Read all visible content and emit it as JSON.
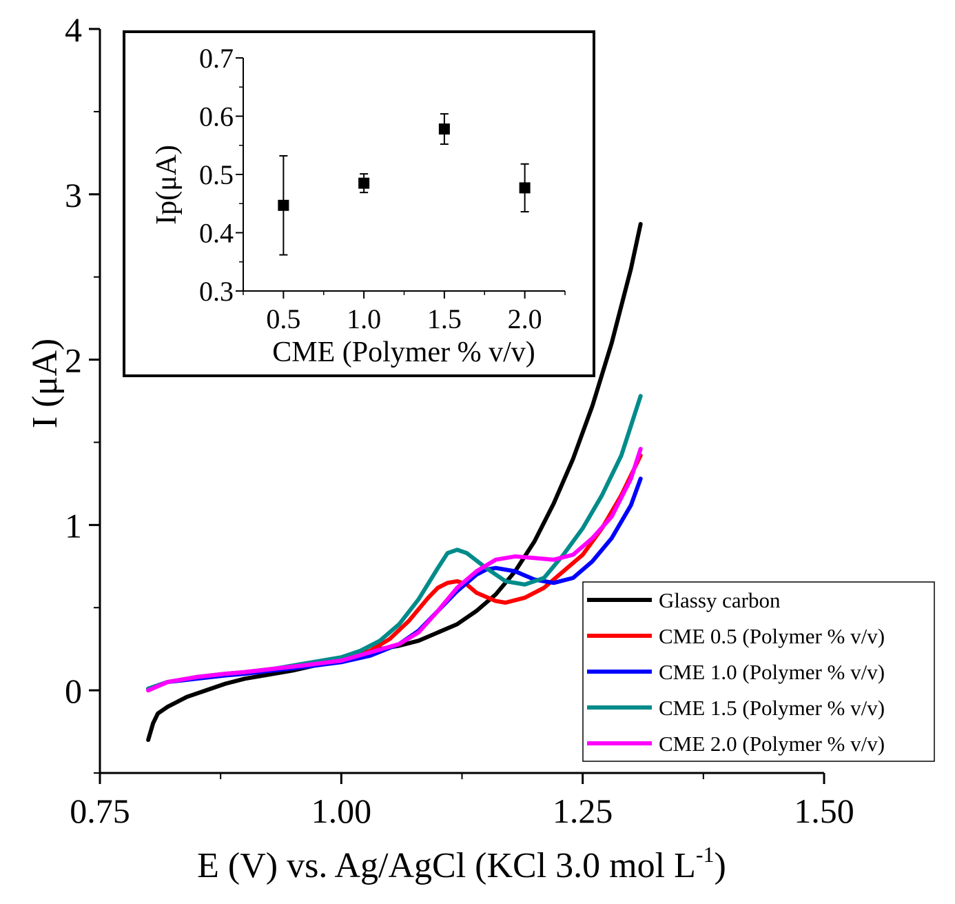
{
  "chart_data": [
    {
      "type": "line",
      "xlabel": "E (V) vs. Ag/AgCl (KCl 3.0 mol L",
      "xlabel_superscript": "-1",
      "xlabel_suffix": ")",
      "ylabel": "I (μA)",
      "xlim": [
        0.75,
        1.5
      ],
      "ylim": [
        -0.5,
        4
      ],
      "x_ticks": [
        "0.75",
        "1.00",
        "1.25",
        "1.50"
      ],
      "x_tick_values": [
        0.75,
        1.0,
        1.25,
        1.5
      ],
      "y_ticks": [
        "0",
        "1",
        "2",
        "3",
        "4"
      ],
      "y_tick_values": [
        0,
        1,
        2,
        3,
        4
      ],
      "legend_position": "bottom-right",
      "series": [
        {
          "name": "Glassy carbon",
          "color": "#000000",
          "points": [
            [
              0.8,
              -0.3
            ],
            [
              0.805,
              -0.2
            ],
            [
              0.81,
              -0.14
            ],
            [
              0.82,
              -0.1
            ],
            [
              0.84,
              -0.04
            ],
            [
              0.86,
              0.0
            ],
            [
              0.88,
              0.04
            ],
            [
              0.9,
              0.07
            ],
            [
              0.92,
              0.09
            ],
            [
              0.95,
              0.12
            ],
            [
              0.98,
              0.16
            ],
            [
              1.0,
              0.19
            ],
            [
              1.02,
              0.22
            ],
            [
              1.04,
              0.25
            ],
            [
              1.06,
              0.27
            ],
            [
              1.08,
              0.3
            ],
            [
              1.1,
              0.35
            ],
            [
              1.12,
              0.4
            ],
            [
              1.14,
              0.48
            ],
            [
              1.16,
              0.58
            ],
            [
              1.18,
              0.72
            ],
            [
              1.2,
              0.9
            ],
            [
              1.22,
              1.13
            ],
            [
              1.24,
              1.4
            ],
            [
              1.26,
              1.72
            ],
            [
              1.28,
              2.1
            ],
            [
              1.3,
              2.55
            ],
            [
              1.31,
              2.82
            ]
          ]
        },
        {
          "name": "CME 0.5 (Polymer % v/v)",
          "color": "#ff0000",
          "points": [
            [
              0.8,
              0.0
            ],
            [
              0.82,
              0.05
            ],
            [
              0.85,
              0.08
            ],
            [
              0.88,
              0.1
            ],
            [
              0.9,
              0.11
            ],
            [
              0.93,
              0.13
            ],
            [
              0.96,
              0.15
            ],
            [
              1.0,
              0.19
            ],
            [
              1.03,
              0.24
            ],
            [
              1.05,
              0.31
            ],
            [
              1.07,
              0.42
            ],
            [
              1.09,
              0.56
            ],
            [
              1.1,
              0.62
            ],
            [
              1.11,
              0.65
            ],
            [
              1.12,
              0.66
            ],
            [
              1.13,
              0.64
            ],
            [
              1.14,
              0.59
            ],
            [
              1.16,
              0.54
            ],
            [
              1.17,
              0.53
            ],
            [
              1.19,
              0.56
            ],
            [
              1.21,
              0.62
            ],
            [
              1.23,
              0.72
            ],
            [
              1.25,
              0.82
            ],
            [
              1.27,
              0.98
            ],
            [
              1.29,
              1.18
            ],
            [
              1.31,
              1.42
            ]
          ]
        },
        {
          "name": "CME 1.0 (Polymer % v/v)",
          "color": "#0000ff",
          "points": [
            [
              0.8,
              0.01
            ],
            [
              0.82,
              0.05
            ],
            [
              0.85,
              0.07
            ],
            [
              0.88,
              0.09
            ],
            [
              0.9,
              0.1
            ],
            [
              0.93,
              0.12
            ],
            [
              0.96,
              0.14
            ],
            [
              1.0,
              0.17
            ],
            [
              1.03,
              0.21
            ],
            [
              1.06,
              0.28
            ],
            [
              1.08,
              0.36
            ],
            [
              1.1,
              0.48
            ],
            [
              1.12,
              0.6
            ],
            [
              1.14,
              0.7
            ],
            [
              1.15,
              0.73
            ],
            [
              1.16,
              0.74
            ],
            [
              1.18,
              0.72
            ],
            [
              1.2,
              0.67
            ],
            [
              1.22,
              0.65
            ],
            [
              1.24,
              0.68
            ],
            [
              1.26,
              0.78
            ],
            [
              1.28,
              0.92
            ],
            [
              1.3,
              1.12
            ],
            [
              1.31,
              1.28
            ]
          ]
        },
        {
          "name": "CME 1.5 (Polymer % v/v)",
          "color": "#008b8b",
          "points": [
            [
              0.8,
              0.01
            ],
            [
              0.82,
              0.05
            ],
            [
              0.85,
              0.08
            ],
            [
              0.88,
              0.1
            ],
            [
              0.9,
              0.11
            ],
            [
              0.93,
              0.13
            ],
            [
              0.96,
              0.16
            ],
            [
              1.0,
              0.2
            ],
            [
              1.02,
              0.24
            ],
            [
              1.04,
              0.3
            ],
            [
              1.06,
              0.4
            ],
            [
              1.08,
              0.55
            ],
            [
              1.1,
              0.74
            ],
            [
              1.11,
              0.83
            ],
            [
              1.12,
              0.85
            ],
            [
              1.13,
              0.83
            ],
            [
              1.15,
              0.74
            ],
            [
              1.17,
              0.66
            ],
            [
              1.19,
              0.64
            ],
            [
              1.21,
              0.68
            ],
            [
              1.23,
              0.82
            ],
            [
              1.25,
              0.98
            ],
            [
              1.27,
              1.18
            ],
            [
              1.29,
              1.42
            ],
            [
              1.31,
              1.78
            ]
          ]
        },
        {
          "name": "CME 2.0 (Polymer % v/v)",
          "color": "#ff00ff",
          "points": [
            [
              0.8,
              0.0
            ],
            [
              0.82,
              0.05
            ],
            [
              0.85,
              0.08
            ],
            [
              0.88,
              0.1
            ],
            [
              0.9,
              0.11
            ],
            [
              0.93,
              0.13
            ],
            [
              0.96,
              0.15
            ],
            [
              1.0,
              0.18
            ],
            [
              1.03,
              0.23
            ],
            [
              1.06,
              0.28
            ],
            [
              1.08,
              0.35
            ],
            [
              1.1,
              0.48
            ],
            [
              1.12,
              0.62
            ],
            [
              1.14,
              0.72
            ],
            [
              1.16,
              0.79
            ],
            [
              1.18,
              0.81
            ],
            [
              1.2,
              0.8
            ],
            [
              1.22,
              0.79
            ],
            [
              1.24,
              0.82
            ],
            [
              1.26,
              0.92
            ],
            [
              1.28,
              1.05
            ],
            [
              1.3,
              1.28
            ],
            [
              1.31,
              1.46
            ]
          ]
        }
      ]
    },
    {
      "type": "scatter",
      "xlabel": "CME (Polymer % v/v)",
      "ylabel": "Ip(μA)",
      "xlim": [
        0.25,
        2.25
      ],
      "ylim": [
        0.3,
        0.7
      ],
      "x_ticks": [
        "0.5",
        "1.0",
        "1.5",
        "2.0"
      ],
      "x_tick_values": [
        0.5,
        1.0,
        1.5,
        2.0
      ],
      "y_ticks": [
        "0.3",
        "0.4",
        "0.5",
        "0.6",
        "0.7"
      ],
      "y_tick_values": [
        0.3,
        0.4,
        0.5,
        0.6,
        0.7
      ],
      "legend_position": "none",
      "points": [
        {
          "x": 0.5,
          "y": 0.447,
          "err": 0.085
        },
        {
          "x": 1.0,
          "y": 0.485,
          "err": 0.016
        },
        {
          "x": 1.5,
          "y": 0.578,
          "err": 0.026
        },
        {
          "x": 2.0,
          "y": 0.477,
          "err": 0.041
        }
      ]
    }
  ]
}
